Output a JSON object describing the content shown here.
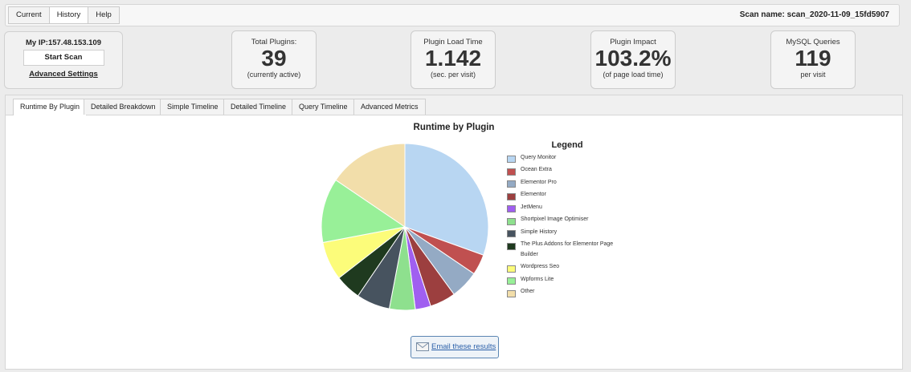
{
  "topnav": {
    "items": [
      "Current",
      "History",
      "Help"
    ],
    "active": 1
  },
  "scan_name": "Scan name: scan_2020-11-09_15fd5907",
  "ip_box": {
    "ip": "My IP:157.48.153.109",
    "start_label": "Start Scan",
    "advanced_label": "Advanced Settings"
  },
  "stats": [
    {
      "label": "Total Plugins:",
      "value": "39",
      "sub": "(currently active)"
    },
    {
      "label": "Plugin Load Time",
      "value": "1.142",
      "sub": "(sec. per visit)"
    },
    {
      "label": "Plugin Impact",
      "value": "103.2%",
      "sub": "(of page load time)"
    },
    {
      "label": "MySQL Queries",
      "value": "119",
      "sub": "per visit"
    }
  ],
  "tabs": [
    "Runtime By Plugin",
    "Detailed Breakdown",
    "Simple Timeline",
    "Detailed Timeline",
    "Query Timeline",
    "Advanced Metrics"
  ],
  "active_tab": 0,
  "email_label": "Email these results",
  "chart_data": {
    "type": "pie",
    "title": "Runtime by Plugin",
    "legend_title": "Legend",
    "legend_position": "right",
    "slices": [
      {
        "label": "Query Monitor",
        "value": 30.5,
        "color": "#b8d6f2"
      },
      {
        "label": "Ocean Extra",
        "value": 4.0,
        "color": "#c05050"
      },
      {
        "label": "Elementor Pro",
        "value": 5.5,
        "color": "#94aac4"
      },
      {
        "label": "Elementor",
        "value": 5.0,
        "color": "#9c3f3f"
      },
      {
        "label": "JetMenu",
        "value": 3.0,
        "color": "#a05ff0"
      },
      {
        "label": "Shortpixel Image Optimiser",
        "value": 5.0,
        "color": "#8ee08e"
      },
      {
        "label": "Simple History",
        "value": 6.5,
        "color": "#47535f"
      },
      {
        "label": "The Plus Addons for Elementor Page Builder",
        "value": 5.0,
        "color": "#1f3a1f"
      },
      {
        "label": "Wordpress Seo",
        "value": 7.5,
        "color": "#fcfc7a"
      },
      {
        "label": "Wpforms Lite",
        "value": 12.5,
        "color": "#98f098"
      },
      {
        "label": "Other",
        "value": 15.5,
        "color": "#f2deaa"
      }
    ]
  }
}
